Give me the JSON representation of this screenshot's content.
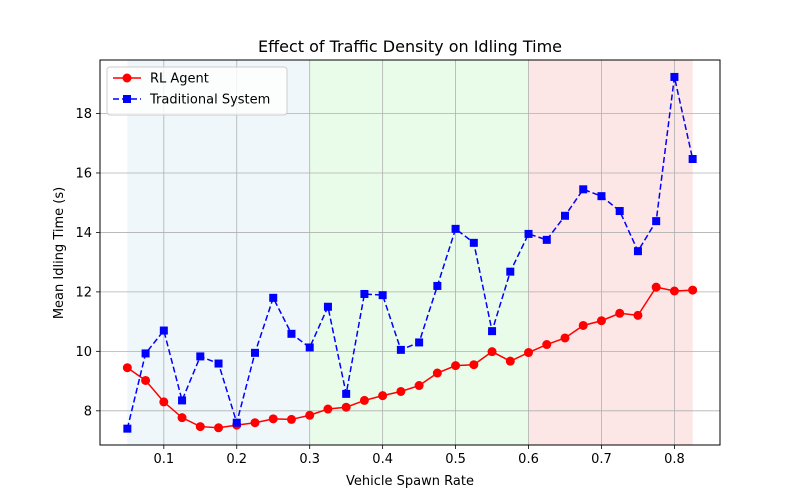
{
  "chart_data": {
    "type": "line",
    "title": "Effect of Traffic Density on Idling Time",
    "xlabel": "Vehicle Spawn Rate",
    "ylabel": "Mean Idling Time (s)",
    "xlim": [
      0.0125,
      0.8625
    ],
    "ylim": [
      6.85,
      19.8
    ],
    "xticks": [
      0.1,
      0.2,
      0.3,
      0.4,
      0.5,
      0.6,
      0.7,
      0.8
    ],
    "xtick_labels": [
      "0.1",
      "0.2",
      "0.3",
      "0.4",
      "0.5",
      "0.6",
      "0.7",
      "0.8"
    ],
    "yticks": [
      8,
      10,
      12,
      14,
      16,
      18
    ],
    "ytick_labels": [
      "8",
      "10",
      "12",
      "14",
      "16",
      "18"
    ],
    "grid": true,
    "legend_position": "top-left",
    "regions": [
      {
        "x_start": 0.05,
        "x_end": 0.3,
        "color": "#add8e6",
        "opacity": 0.2
      },
      {
        "x_start": 0.3,
        "x_end": 0.6,
        "color": "#90ee90",
        "opacity": 0.2
      },
      {
        "x_start": 0.6,
        "x_end": 0.825,
        "color": "#f08080",
        "opacity": 0.2
      }
    ],
    "x": [
      0.05,
      0.075,
      0.1,
      0.125,
      0.15,
      0.175,
      0.2,
      0.225,
      0.25,
      0.275,
      0.3,
      0.325,
      0.35,
      0.375,
      0.4,
      0.425,
      0.45,
      0.475,
      0.5,
      0.525,
      0.55,
      0.575,
      0.6,
      0.625,
      0.65,
      0.675,
      0.7,
      0.725,
      0.75,
      0.775,
      0.8,
      0.825
    ],
    "series": [
      {
        "name": "RL Agent",
        "color": "#ff0000",
        "line_style": "solid",
        "marker": "circle",
        "values": [
          9.45,
          9.02,
          8.3,
          7.77,
          7.47,
          7.43,
          7.52,
          7.6,
          7.73,
          7.71,
          7.85,
          8.06,
          8.12,
          8.35,
          8.51,
          8.65,
          8.85,
          9.27,
          9.52,
          9.55,
          9.99,
          9.67,
          9.96,
          10.23,
          10.45,
          10.87,
          11.03,
          11.28,
          11.21,
          12.16,
          12.03,
          12.06
        ]
      },
      {
        "name": "Traditional System",
        "color": "#0000ff",
        "line_style": "dashed",
        "marker": "square",
        "values": [
          7.4,
          9.93,
          10.7,
          8.35,
          9.83,
          9.59,
          7.6,
          9.95,
          11.8,
          10.59,
          10.13,
          11.5,
          8.57,
          11.93,
          11.89,
          10.05,
          10.3,
          12.2,
          14.12,
          13.65,
          10.68,
          12.68,
          13.95,
          13.75,
          14.56,
          15.45,
          15.22,
          14.72,
          13.37,
          14.38,
          19.23,
          16.47
        ]
      }
    ]
  }
}
